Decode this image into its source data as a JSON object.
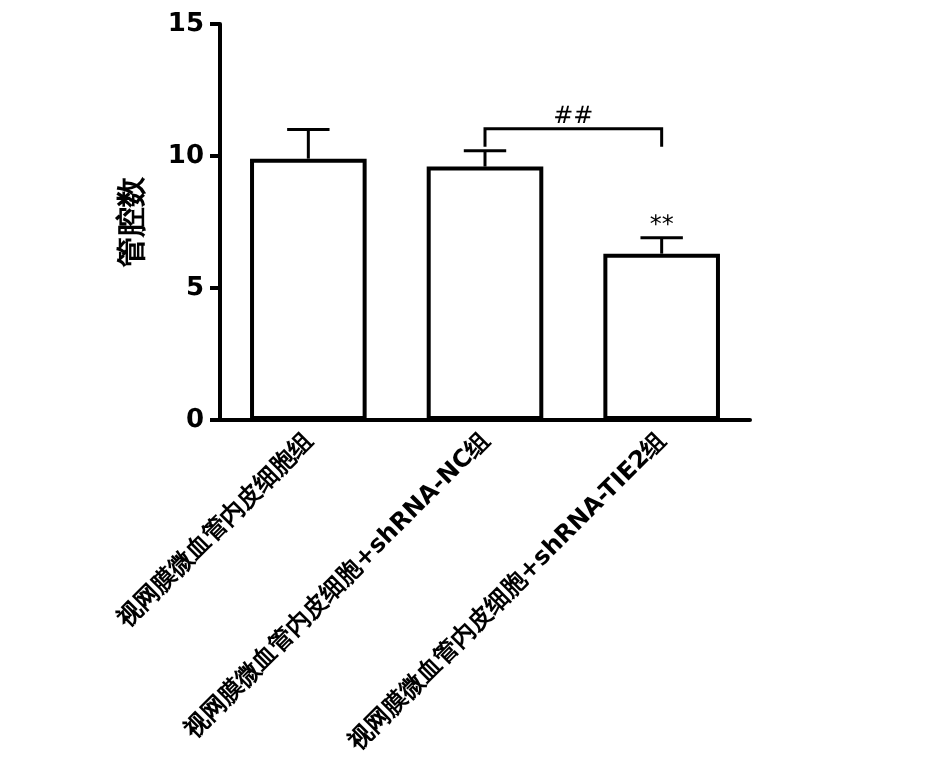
{
  "chart_data": {
    "type": "bar",
    "ylabel": "管腔数",
    "categories": [
      "视网膜微血管内皮细胞组",
      "视网膜微血管内皮细胞+shRNA-NC组",
      "视网膜微血管内皮细胞+shRNA-TIE2组"
    ],
    "values": [
      9.9,
      9.6,
      6.3
    ],
    "errors": [
      1.1,
      0.6,
      0.6
    ],
    "color": "#ffffff",
    "ylim": [
      0,
      15
    ],
    "yticks": [
      0,
      5,
      10,
      15
    ],
    "grid": false,
    "annotations": [
      "##",
      {
        "text": "**",
        "x": "视网膜微血管内皮细胞+shRNA-TIE2组",
        "y": 6.9
      }
    ]
  }
}
